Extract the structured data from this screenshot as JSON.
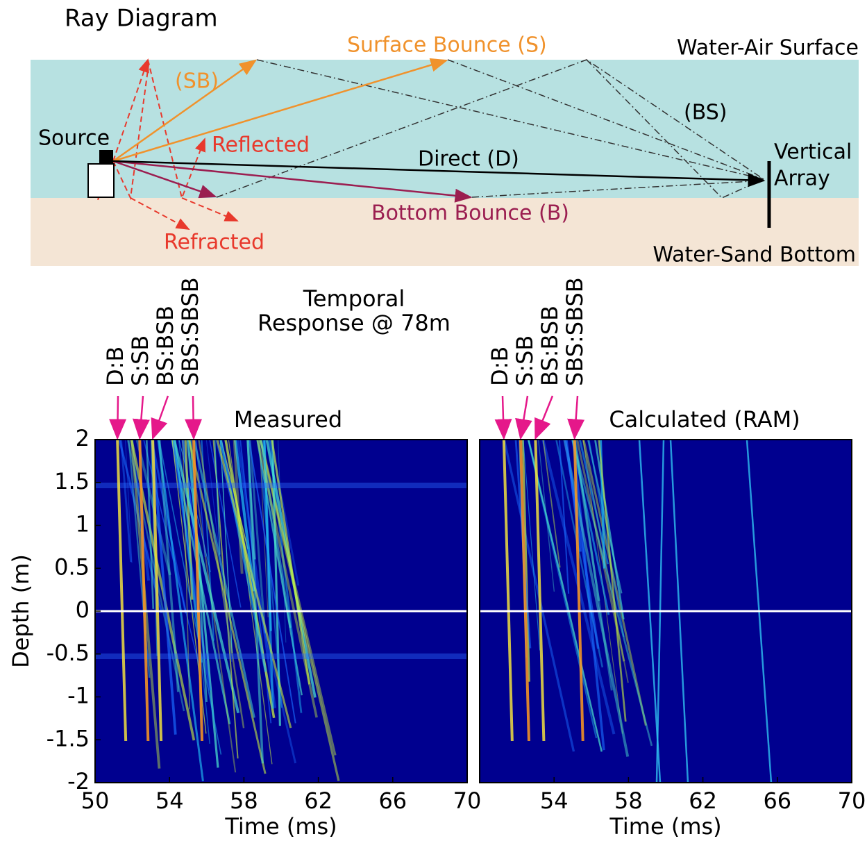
{
  "diagram": {
    "title": "Ray Diagram",
    "surface_label": "Water-Air Surface",
    "bottom_label": "Water-Sand Bottom",
    "source_label": "Source",
    "array_label": [
      "Vertical",
      "Array"
    ],
    "rays": {
      "surface": "Surface Bounce (S)",
      "sb": "(SB)",
      "bs": "(BS)",
      "direct": "Direct (D)",
      "bottom": "Bottom Bounce (B)",
      "reflected": "Reflected",
      "refracted": "Refracted"
    }
  },
  "heading": [
    "Temporal",
    "Response @ 78m"
  ],
  "chart_data": [
    {
      "type": "heatmap",
      "title": "Measured",
      "xlabel": "Time (ms)",
      "ylabel": "Depth (m)",
      "xlim": [
        50,
        70
      ],
      "ylim": [
        -2,
        2
      ],
      "xticks": [
        50,
        54,
        58,
        62,
        66,
        70
      ],
      "yticks": [
        2,
        1.5,
        1,
        0.5,
        0,
        -0.5,
        -1,
        -1.5,
        -2
      ],
      "reference_line": 0,
      "arrivals": [
        {
          "label": "D:B",
          "x": 51.2
        },
        {
          "label": "S:SB",
          "x": 52.4
        },
        {
          "label": "BS:BSB",
          "x": 53.1
        },
        {
          "label": "SBS:SBSB",
          "x": 55.3
        }
      ]
    },
    {
      "type": "heatmap",
      "title": "Calculated (RAM)",
      "xlabel": "Time (ms)",
      "xlim": [
        50,
        70
      ],
      "ylim": [
        -2,
        2
      ],
      "xticks": [
        54,
        58,
        62,
        66,
        70
      ],
      "reference_line": 0,
      "arrivals": [
        {
          "label": "D:B",
          "x": 51.3
        },
        {
          "label": "S:SB",
          "x": 52.2
        },
        {
          "label": "BS:BSB",
          "x": 53.0
        },
        {
          "label": "SBS:SBSB",
          "x": 55.1
        }
      ]
    }
  ]
}
